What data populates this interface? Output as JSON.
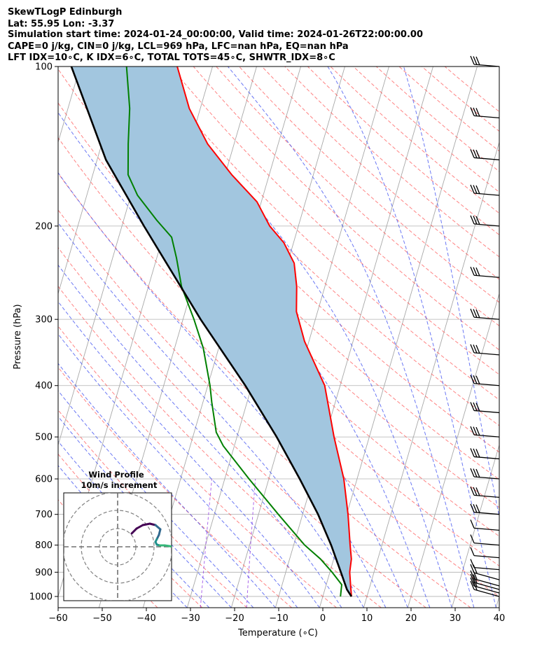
{
  "header": {
    "line1": "SkewTLogP Edinburgh",
    "line2": "Lat: 55.95   Lon: -3.37",
    "line3": "Simulation start time: 2024-01-24_00:00:00, Valid time: 2024-01-26T22:00:00.00",
    "line4": "CAPE=0 j/kg, CIN=0 j/kg, LCL=969 hPa, LFC=nan hPa, EQ=nan hPa",
    "line5": "LFT IDX=10∘C, K IDX=6∘C, TOTAL TOTS=45∘C, SHWTR_IDX=8∘C"
  },
  "chart_data": {
    "type": "line",
    "subtype": "skew-T log-P diagram",
    "xlabel": "Temperature (∘C)",
    "ylabel": "Pressure (hPa)",
    "xlim": [
      -60,
      40
    ],
    "ylim": [
      1050,
      100
    ],
    "xticks": [
      -60,
      -50,
      -40,
      -30,
      -20,
      -10,
      0,
      10,
      20,
      30,
      40
    ],
    "yticks": [
      100,
      200,
      300,
      400,
      500,
      600,
      700,
      800,
      900,
      1000
    ],
    "series": [
      {
        "name": "temperature",
        "color": "#ff0000",
        "points": [
          [
            6.5,
            1000
          ],
          [
            5.5,
            950
          ],
          [
            4.5,
            900
          ],
          [
            4.0,
            850
          ],
          [
            2.8,
            800
          ],
          [
            0.3,
            700
          ],
          [
            -3.0,
            600
          ],
          [
            -8.0,
            500
          ],
          [
            -13.5,
            400
          ],
          [
            -21.0,
            330
          ],
          [
            -24.8,
            290
          ],
          [
            -26.4,
            260
          ],
          [
            -28.5,
            235
          ],
          [
            -32.2,
            215
          ],
          [
            -36.5,
            200
          ],
          [
            -41.0,
            180
          ],
          [
            -48.5,
            160
          ],
          [
            -56.0,
            140
          ],
          [
            -62.5,
            120
          ],
          [
            -68.0,
            100
          ]
        ]
      },
      {
        "name": "dewpoint",
        "color": "#008000",
        "points": [
          [
            4.0,
            1000
          ],
          [
            3.5,
            950
          ],
          [
            0.5,
            900
          ],
          [
            -3.0,
            850
          ],
          [
            -7.5,
            800
          ],
          [
            -15.5,
            700
          ],
          [
            -24.5,
            600
          ],
          [
            -32.5,
            520
          ],
          [
            -35.0,
            490
          ],
          [
            -38.0,
            430
          ],
          [
            -39.5,
            400
          ],
          [
            -43.5,
            340
          ],
          [
            -47.5,
            300
          ],
          [
            -52.5,
            260
          ],
          [
            -55.5,
            230
          ],
          [
            -58.0,
            210
          ],
          [
            -62.5,
            195
          ],
          [
            -68.5,
            175
          ],
          [
            -72.0,
            160
          ],
          [
            -74.0,
            140
          ],
          [
            -76.0,
            120
          ],
          [
            -79.5,
            100
          ]
        ]
      },
      {
        "name": "parcel",
        "color": "#000000",
        "points": [
          [
            6.5,
            1000
          ],
          [
            5.0,
            970
          ],
          [
            2.5,
            900
          ],
          [
            -1.5,
            800
          ],
          [
            -6.5,
            700
          ],
          [
            -13.0,
            600
          ],
          [
            -21.0,
            500
          ],
          [
            -31.5,
            400
          ],
          [
            -46.0,
            300
          ],
          [
            -65.0,
            200
          ],
          [
            -78.0,
            150
          ],
          [
            -92.0,
            100
          ]
        ]
      }
    ],
    "wind_barbs_pressure_levels": [
      1000,
      985,
      970,
      955,
      930,
      890,
      845,
      800,
      750,
      700,
      650,
      600,
      550,
      500,
      450,
      400,
      350,
      300,
      250,
      200,
      175,
      150,
      125,
      100
    ],
    "shaded_region": {
      "between": [
        "temperature",
        "parcel"
      ],
      "color": "#a2c6df"
    },
    "background_lines": {
      "isotherms": "gray",
      "dry_adiabats": "red dashed",
      "moist_adiabats": "blue dashed",
      "mixing_ratio": "purple dashed"
    }
  },
  "inset": {
    "title": "Wind Profile",
    "subtitle": "10m/s increment",
    "rings": 3,
    "hodograph_colors": [
      "#440154",
      "#31688e",
      "#21918c",
      "#35b779"
    ]
  }
}
